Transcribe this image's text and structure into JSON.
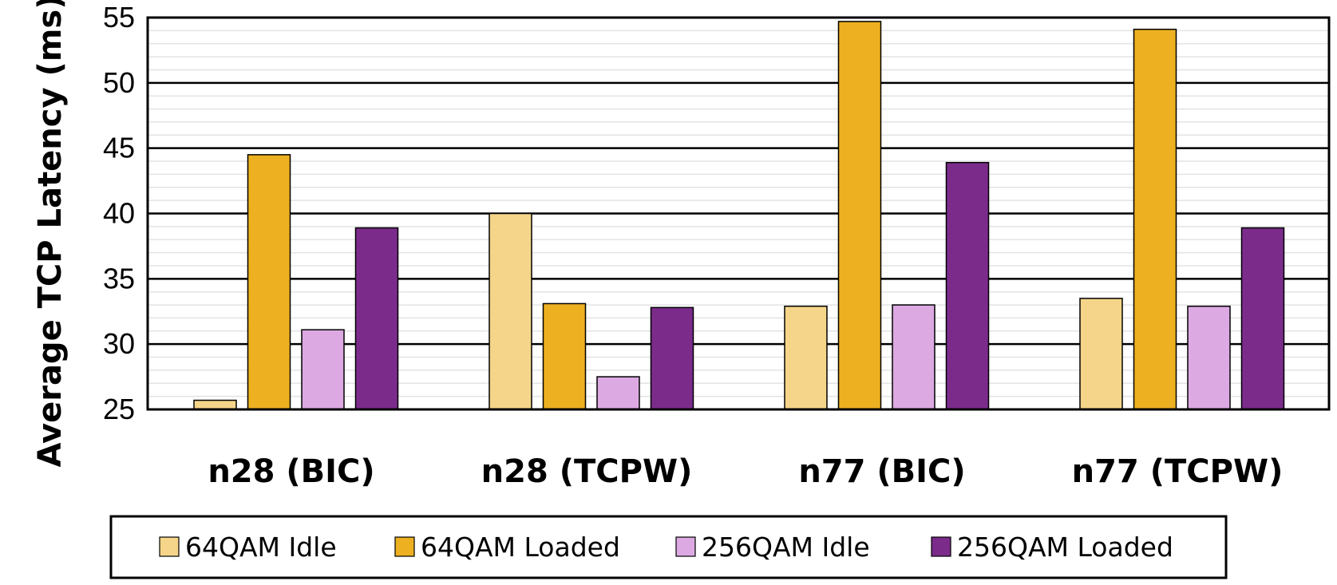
{
  "chart_data": {
    "type": "bar",
    "title": "",
    "xlabel": "",
    "ylabel": "Average TCP Latency (ms)",
    "ylim": [
      25,
      55
    ],
    "yticks": [
      25,
      30,
      35,
      40,
      45,
      50,
      55
    ],
    "grid": true,
    "legend_position": "bottom",
    "categories": [
      "n28 (BIC)",
      "n28 (TCPW)",
      "n77 (BIC)",
      "n77 (TCPW)"
    ],
    "series": [
      {
        "name": "64QAM Idle",
        "color": "#F5D58A",
        "values": [
          25.7,
          40.0,
          32.9,
          33.5
        ]
      },
      {
        "name": "64QAM Loaded",
        "color": "#ECB021",
        "values": [
          44.5,
          33.1,
          54.7,
          54.1
        ]
      },
      {
        "name": "256QAM Idle",
        "color": "#DCA9E2",
        "values": [
          31.1,
          27.5,
          33.0,
          32.9
        ]
      },
      {
        "name": "256QAM Loaded",
        "color": "#7B2C8B",
        "values": [
          38.9,
          32.8,
          43.9,
          38.9
        ]
      }
    ]
  }
}
